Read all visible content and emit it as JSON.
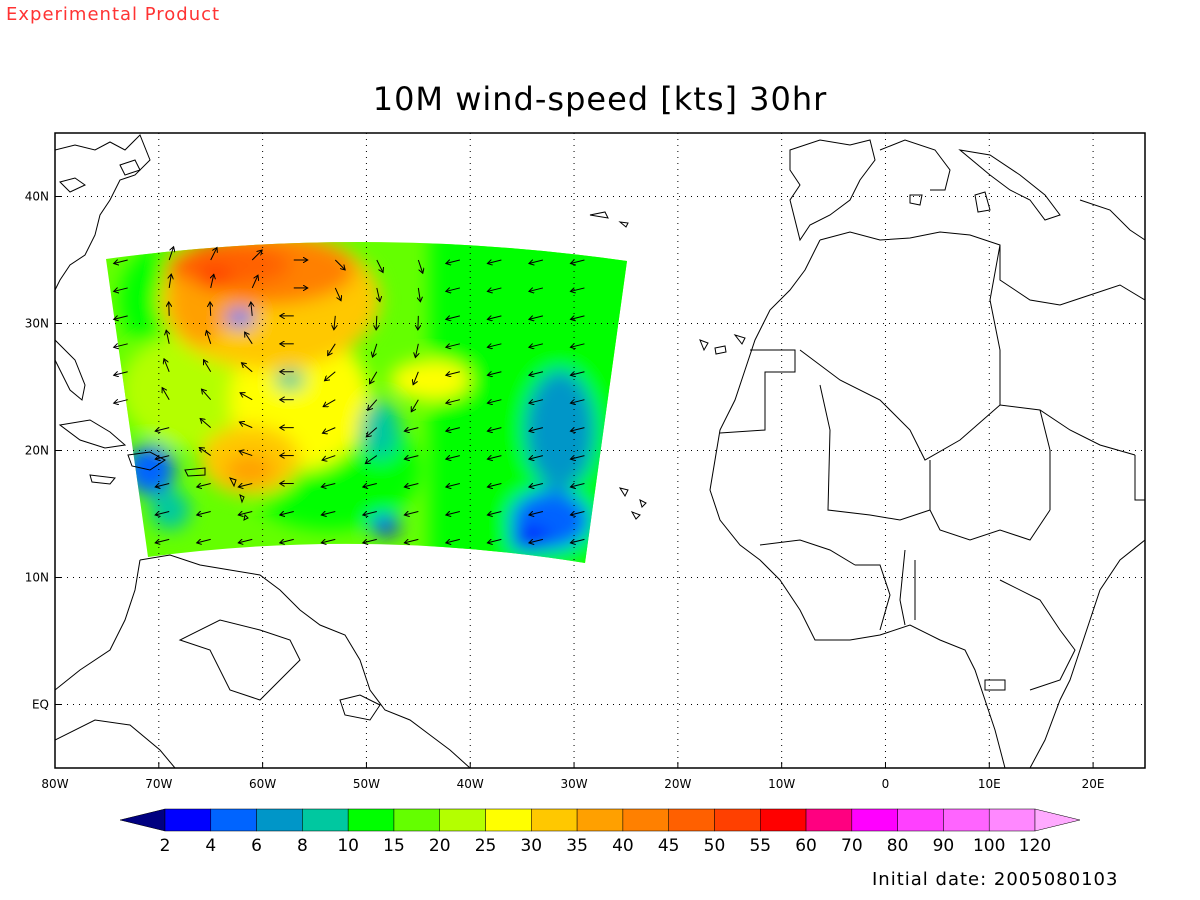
{
  "header": {
    "experimental_label": "Experimental Product",
    "title": "10M wind-speed [kts] 30hr"
  },
  "footer": {
    "initial_date": "Initial date: 2005080103"
  },
  "map": {
    "lon_range": [
      -80,
      25
    ],
    "lat_range": [
      -5,
      45
    ],
    "lon_ticks": [
      {
        "value": -80,
        "label": "80W"
      },
      {
        "value": -70,
        "label": "70W"
      },
      {
        "value": -60,
        "label": "60W"
      },
      {
        "value": -50,
        "label": "50W"
      },
      {
        "value": -40,
        "label": "40W"
      },
      {
        "value": -30,
        "label": "30W"
      },
      {
        "value": -20,
        "label": "20W"
      },
      {
        "value": -10,
        "label": "10W"
      },
      {
        "value": 0,
        "label": "0"
      },
      {
        "value": 10,
        "label": "10E"
      },
      {
        "value": 20,
        "label": "20E"
      }
    ],
    "lat_ticks": [
      {
        "value": 40,
        "label": "40N"
      },
      {
        "value": 30,
        "label": "30N"
      },
      {
        "value": 20,
        "label": "20N"
      },
      {
        "value": 10,
        "label": "10N"
      },
      {
        "value": 0,
        "label": "EQ"
      }
    ],
    "gridlines": "dotted",
    "domain_lon_range_north": [
      -75,
      -25
    ],
    "domain_lon_range_south": [
      -71,
      -29
    ],
    "domain_lat_range": [
      11,
      37
    ]
  },
  "colorbar": {
    "labels": [
      "2",
      "4",
      "6",
      "8",
      "10",
      "15",
      "20",
      "25",
      "30",
      "35",
      "40",
      "45",
      "50",
      "55",
      "60",
      "70",
      "80",
      "90",
      "100",
      "120"
    ],
    "colors": [
      "#000080",
      "#0000ff",
      "#0064ff",
      "#0096c8",
      "#00c8a0",
      "#00ff00",
      "#64ff00",
      "#b4ff00",
      "#ffff00",
      "#ffc800",
      "#ffa000",
      "#ff8000",
      "#ff6000",
      "#ff4000",
      "#ff0000",
      "#ff0080",
      "#ff00ff",
      "#ff40ff",
      "#ff64ff",
      "#ff88ff",
      "#ffaaff"
    ]
  },
  "chart_data": {
    "type": "heatmap",
    "title": "10M wind-speed [kts] 30hr",
    "units": "kts",
    "features": [
      {
        "name": "high-wind core (40-55 kts)",
        "lon": -61,
        "lat": 33,
        "radius_deg": 6
      },
      {
        "name": "calm eye (<10 kts)",
        "lon": -57,
        "lat": 30.5,
        "radius_deg": 1.2
      },
      {
        "name": "secondary maximum (35-45 kts)",
        "lon": -62,
        "lat": 18,
        "radius_deg": 4
      },
      {
        "name": "low-wind area (2-8 kts)",
        "lon": -33,
        "lat": 16,
        "radius_deg": 3
      }
    ],
    "wind_vectors": "arrows on a ~4 degree grid, clockwise circulation around 31N 57W"
  }
}
